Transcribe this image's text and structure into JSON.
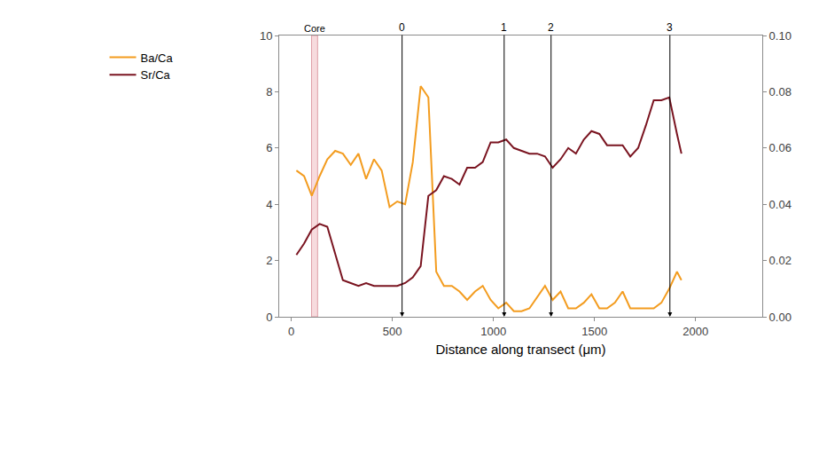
{
  "chart_data": {
    "type": "line",
    "x": [
      25,
      63,
      101,
      140,
      178,
      217,
      255,
      294,
      332,
      370,
      409,
      447,
      486,
      524,
      563,
      601,
      640,
      678,
      717,
      755,
      794,
      832,
      870,
      909,
      947,
      986,
      1024,
      1063,
      1101,
      1139,
      1178,
      1216,
      1255,
      1293,
      1332,
      1370,
      1408,
      1447,
      1485,
      1524,
      1562,
      1601,
      1639,
      1677,
      1716,
      1754,
      1793,
      1831,
      1870,
      1908,
      1930
    ],
    "series": [
      {
        "name": "Ba/Ca",
        "color": "#f39c1f",
        "values": [
          5.2,
          5.0,
          4.3,
          5.0,
          5.6,
          5.9,
          5.8,
          5.4,
          5.8,
          4.9,
          5.6,
          5.2,
          3.9,
          4.1,
          4.0,
          5.5,
          8.2,
          7.8,
          1.6,
          1.1,
          1.1,
          0.9,
          0.6,
          0.9,
          1.1,
          0.6,
          0.3,
          0.5,
          0.2,
          0.2,
          0.3,
          0.7,
          1.1,
          0.6,
          0.9,
          0.3,
          0.3,
          0.5,
          0.8,
          0.3,
          0.3,
          0.5,
          0.9,
          0.3,
          0.3,
          0.3,
          0.3,
          0.5,
          1.0,
          1.6,
          1.3
        ]
      },
      {
        "name": "Sr/Ca",
        "color": "#7a1420",
        "axis": "y2",
        "values": [
          0.022,
          0.026,
          0.031,
          0.033,
          0.032,
          0.022,
          0.013,
          0.012,
          0.011,
          0.012,
          0.011,
          0.011,
          0.011,
          0.011,
          0.012,
          0.014,
          0.018,
          0.043,
          0.045,
          0.05,
          0.049,
          0.047,
          0.053,
          0.053,
          0.055,
          0.062,
          0.062,
          0.063,
          0.06,
          0.059,
          0.058,
          0.058,
          0.057,
          0.053,
          0.056,
          0.06,
          0.058,
          0.063,
          0.066,
          0.065,
          0.061,
          0.061,
          0.061,
          0.057,
          0.06,
          0.068,
          0.077,
          0.077,
          0.078,
          0.065,
          0.058
        ]
      }
    ],
    "xlabel": "Distance along transect (μm)",
    "xlim": [
      -60,
      2330
    ],
    "xticks": [
      0,
      500,
      1000,
      1500,
      2000
    ],
    "ylim": [
      0,
      10
    ],
    "yticks": [
      0,
      2,
      4,
      6,
      8,
      10
    ],
    "y2lim": [
      0,
      0.1
    ],
    "y2ticks": [
      {
        "value": 0,
        "label": "0.00"
      },
      {
        "value": 0.02,
        "label": "0.02"
      },
      {
        "value": 0.04,
        "label": "0.04"
      },
      {
        "value": 0.06,
        "label": "0.06"
      },
      {
        "value": 0.08,
        "label": "0.08"
      },
      {
        "value": 0.1,
        "label": "0.10"
      }
    ],
    "grid": false,
    "legend": "left",
    "annotations": [
      {
        "text": "Core",
        "x": 115,
        "band": [
          100,
          130
        ]
      },
      {
        "text": "0",
        "x": 548
      },
      {
        "text": "1",
        "x": 1053
      },
      {
        "text": "2",
        "x": 1285
      },
      {
        "text": "3",
        "x": 1873
      }
    ]
  }
}
